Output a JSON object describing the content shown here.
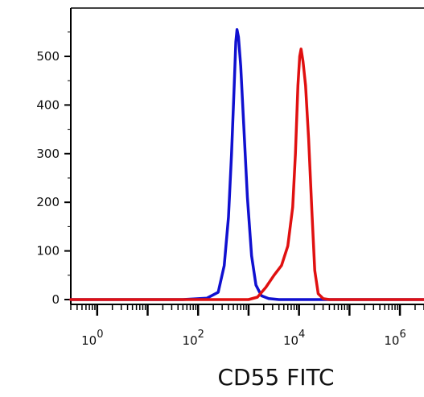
{
  "chart_data": {
    "type": "line",
    "title": "",
    "xlabel": "CD55 FITC",
    "ylabel": "",
    "x_scale": "log10",
    "xlim": [
      0.3,
      3000000
    ],
    "ylim": [
      -20,
      590
    ],
    "x_ticks": [
      {
        "value": 1,
        "base": "10",
        "exp": "0"
      },
      {
        "value": 100,
        "base": "10",
        "exp": "2"
      },
      {
        "value": 10000,
        "base": "10",
        "exp": "4"
      },
      {
        "value": 1000000,
        "base": "10",
        "exp": "6"
      }
    ],
    "y_ticks": [
      0,
      100,
      200,
      300,
      400,
      500
    ],
    "grid": false,
    "series": [
      {
        "color": "#1010d0",
        "points": [
          [
            0.3,
            0
          ],
          [
            50,
            0
          ],
          [
            150,
            3
          ],
          [
            250,
            15
          ],
          [
            330,
            70
          ],
          [
            400,
            170
          ],
          [
            460,
            300
          ],
          [
            520,
            440
          ],
          [
            560,
            530
          ],
          [
            590,
            555
          ],
          [
            630,
            540
          ],
          [
            700,
            480
          ],
          [
            800,
            360
          ],
          [
            950,
            210
          ],
          [
            1150,
            90
          ],
          [
            1400,
            30
          ],
          [
            1800,
            8
          ],
          [
            2500,
            2
          ],
          [
            4000,
            0
          ],
          [
            3000000,
            0
          ]
        ]
      },
      {
        "color": "#e01010",
        "points": [
          [
            0.3,
            0
          ],
          [
            1000,
            0
          ],
          [
            1500,
            5
          ],
          [
            2200,
            25
          ],
          [
            3200,
            50
          ],
          [
            4500,
            70
          ],
          [
            6000,
            110
          ],
          [
            7500,
            190
          ],
          [
            8500,
            300
          ],
          [
            9500,
            440
          ],
          [
            10300,
            500
          ],
          [
            11000,
            515
          ],
          [
            12000,
            490
          ],
          [
            13500,
            440
          ],
          [
            15500,
            330
          ],
          [
            18000,
            180
          ],
          [
            20500,
            60
          ],
          [
            24000,
            12
          ],
          [
            30000,
            2
          ],
          [
            40000,
            0
          ],
          [
            3000000,
            0
          ]
        ]
      }
    ]
  }
}
